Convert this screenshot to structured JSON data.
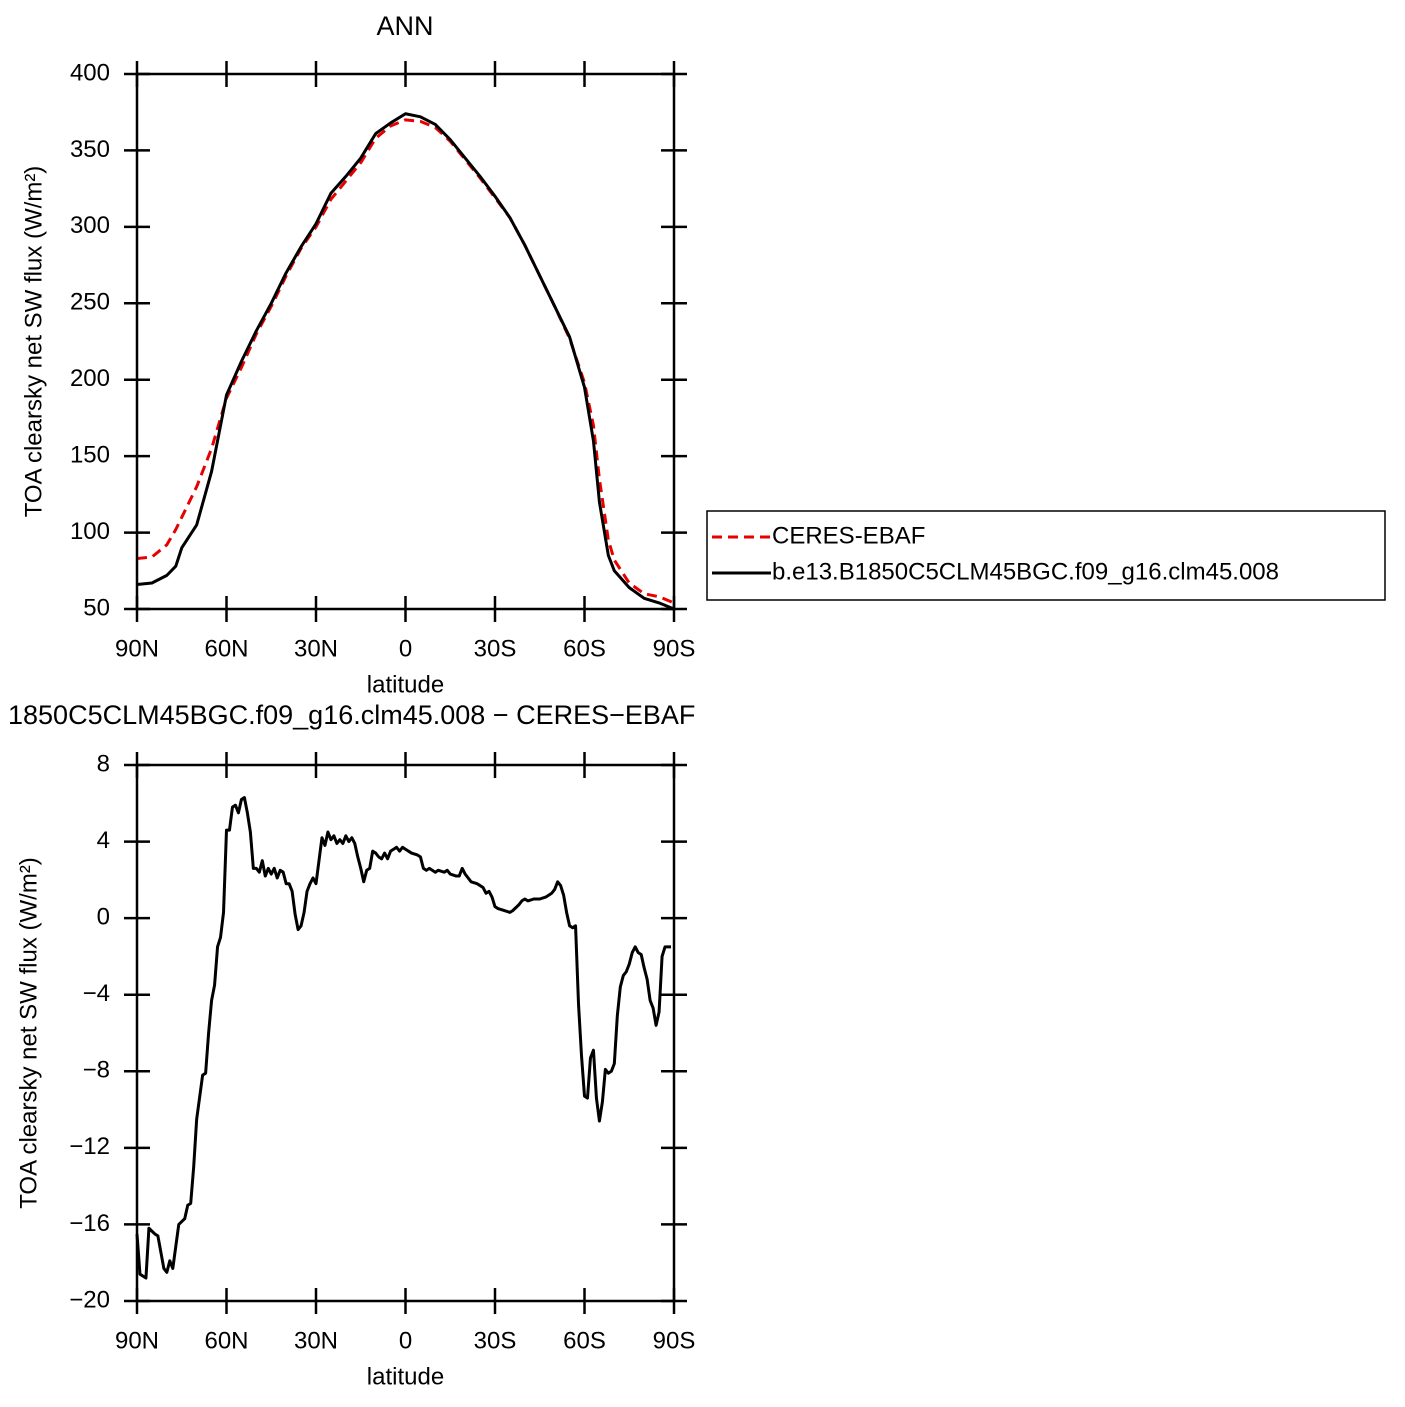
{
  "chart_data": [
    {
      "type": "line",
      "title": "ANN",
      "xlabel": "latitude",
      "ylabel": "TOA clearsky net SW flux (W/m²)",
      "xlim": [
        90,
        -90
      ],
      "xticks": [
        {
          "value": 90,
          "label": "90N"
        },
        {
          "value": 60,
          "label": "60N"
        },
        {
          "value": 30,
          "label": "30N"
        },
        0,
        {
          "value": -30,
          "label": "30S"
        },
        {
          "value": -60,
          "label": "60S"
        },
        {
          "value": -90,
          "label": "90S"
        }
      ],
      "ylim": [
        50,
        400
      ],
      "yticks": [
        50,
        100,
        150,
        200,
        250,
        300,
        350,
        400
      ],
      "legend": "right",
      "x": [
        90,
        85,
        80,
        77,
        75,
        70,
        65,
        60,
        55,
        50,
        45,
        40,
        35,
        30,
        25,
        20,
        15,
        10,
        5,
        0,
        -5,
        -10,
        -15,
        -20,
        -25,
        -30,
        -35,
        -40,
        -45,
        -50,
        -55,
        -60,
        -63,
        -65,
        -68,
        -70,
        -75,
        -80,
        -85,
        -90
      ],
      "series": [
        {
          "name": "CERES-EBAF",
          "color": "#e60000",
          "dash": true,
          "values": [
            83,
            84,
            92,
            102,
            110,
            130,
            155,
            188,
            208,
            230,
            248,
            268,
            286,
            300,
            318,
            330,
            342,
            358,
            366,
            370,
            369,
            365,
            356,
            344,
            332,
            319,
            306,
            288,
            268,
            248,
            227,
            198,
            170,
            135,
            95,
            82,
            67,
            60,
            58,
            54
          ]
        },
        {
          "name": "b.e13.B1850C5CLM45BGC.f09_g16.clm45.008",
          "color": "#000000",
          "dash": false,
          "values": [
            66,
            67,
            72,
            78,
            90,
            105,
            140,
            190,
            212,
            232,
            250,
            270,
            287,
            302,
            322,
            333,
            345,
            361,
            368,
            374,
            372,
            367,
            357,
            345,
            333,
            320,
            306,
            288,
            268,
            248,
            228,
            195,
            160,
            120,
            85,
            75,
            64,
            57,
            54,
            50
          ]
        }
      ]
    },
    {
      "type": "line",
      "title": "1850C5CLM45BGC.f09_g16.clm45.008 − CERES−EBAF",
      "xlabel": "latitude",
      "ylabel": "TOA clearsky net SW flux (W/m²)",
      "xlim": [
        90,
        -90
      ],
      "xticks": [
        {
          "value": 90,
          "label": "90N"
        },
        {
          "value": 60,
          "label": "60N"
        },
        {
          "value": 30,
          "label": "30N"
        },
        0,
        {
          "value": -30,
          "label": "30S"
        },
        {
          "value": -60,
          "label": "60S"
        },
        {
          "value": -90,
          "label": "90S"
        }
      ],
      "ylim": [
        -20,
        8
      ],
      "yticks": [
        {
          "value": -20,
          "label": "−20"
        },
        {
          "value": -16,
          "label": "−16"
        },
        {
          "value": -12,
          "label": "−12"
        },
        {
          "value": -8,
          "label": "−8"
        },
        {
          "value": -4,
          "label": "−4"
        },
        0,
        4,
        8
      ],
      "x": [
        90,
        89,
        87,
        86,
        84,
        83,
        81,
        80,
        79,
        78,
        76,
        74,
        73,
        72,
        71,
        70,
        68,
        67,
        66,
        65,
        64,
        63,
        62,
        61,
        60,
        59,
        58,
        57,
        56,
        55,
        54,
        53,
        52,
        51,
        50,
        49,
        48,
        47,
        46,
        45,
        44,
        43,
        42,
        41,
        40,
        39,
        38,
        37,
        36,
        35,
        34,
        33,
        32,
        31,
        30,
        29,
        28,
        27,
        26,
        25,
        24,
        23,
        22,
        21,
        20,
        19,
        18,
        17,
        16,
        15,
        14,
        13,
        12,
        11,
        10,
        9,
        8,
        7,
        6,
        5,
        4,
        3,
        2,
        1,
        0,
        -2,
        -4,
        -5,
        -6,
        -7,
        -8,
        -10,
        -11,
        -13,
        -14,
        -15,
        -17,
        -18,
        -19,
        -20,
        -22,
        -24,
        -26,
        -27,
        -28,
        -29,
        -30,
        -31,
        -33,
        -35,
        -36,
        -38,
        -39,
        -40,
        -41,
        -43,
        -45,
        -47,
        -49,
        -50,
        -51,
        -52,
        -53,
        -54,
        -55,
        -56,
        -57,
        -58,
        -59,
        -60,
        -61,
        -62,
        -63,
        -64,
        -65,
        -66,
        -67,
        -68,
        -69,
        -70,
        -71,
        -72,
        -73,
        -74,
        -75,
        -76,
        -77,
        -78,
        -79,
        -80,
        -81,
        -82,
        -83,
        -84,
        -85,
        -86,
        -87,
        -89
      ],
      "series": [
        {
          "color": "#000000",
          "dash": false,
          "values": [
            -16.5,
            -18.6,
            -18.8,
            -16.2,
            -16.5,
            -16.6,
            -18.3,
            -18.5,
            -17.9,
            -18.3,
            -16.0,
            -15.7,
            -15.0,
            -14.9,
            -13.0,
            -10.5,
            -8.2,
            -8.1,
            -6.0,
            -4.3,
            -3.5,
            -1.5,
            -1.0,
            0.3,
            4.6,
            4.6,
            5.8,
            5.9,
            5.5,
            6.2,
            6.3,
            5.5,
            4.5,
            2.6,
            2.6,
            2.4,
            3.0,
            2.2,
            2.6,
            2.3,
            2.6,
            2.1,
            2.5,
            2.4,
            1.8,
            1.8,
            1.4,
            0.2,
            -0.6,
            -0.4,
            0.3,
            1.4,
            1.8,
            2.1,
            1.8,
            3.0,
            4.2,
            3.8,
            4.5,
            4.1,
            4.3,
            3.9,
            4.1,
            3.9,
            4.3,
            4.0,
            4.2,
            3.9,
            3.2,
            2.6,
            1.9,
            2.5,
            2.6,
            3.5,
            3.4,
            3.2,
            3.1,
            3.4,
            3.1,
            3.5,
            3.6,
            3.7,
            3.5,
            3.7,
            3.6,
            3.4,
            3.3,
            3.2,
            2.6,
            2.5,
            2.6,
            2.4,
            2.5,
            2.4,
            2.5,
            2.3,
            2.2,
            2.2,
            2.6,
            2.3,
            1.9,
            1.8,
            1.6,
            1.3,
            1.4,
            1.1,
            0.6,
            0.5,
            0.4,
            0.3,
            0.4,
            0.7,
            0.9,
            1.0,
            0.9,
            1.0,
            1.0,
            1.1,
            1.3,
            1.5,
            1.9,
            1.7,
            1.2,
            0.3,
            -0.4,
            -0.5,
            -0.4,
            -4.5,
            -7.2,
            -9.3,
            -9.4,
            -7.3,
            -6.9,
            -9.4,
            -10.6,
            -9.6,
            -7.9,
            -8.1,
            -8.0,
            -7.6,
            -5.1,
            -3.6,
            -3.0,
            -2.8,
            -2.4,
            -1.8,
            -1.5,
            -1.8,
            -1.9,
            -2.6,
            -3.2,
            -4.3,
            -4.7,
            -5.6,
            -4.9,
            -2.0,
            -1.5,
            -1.5
          ]
        }
      ]
    }
  ]
}
